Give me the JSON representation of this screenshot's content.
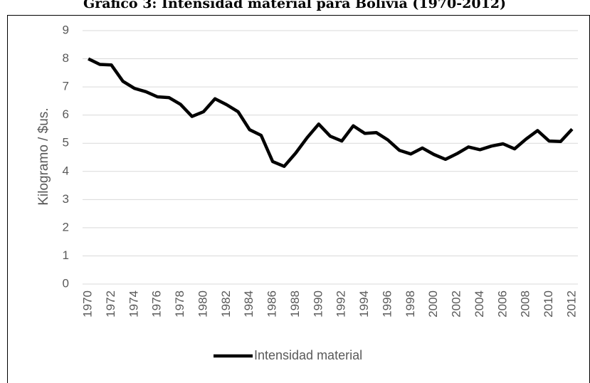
{
  "chart_data": {
    "type": "line",
    "title": "Gráfico 3: Intensidad material para Bolivia (1970-2012)",
    "y_label": "Kilogramo / $us.",
    "categories": [
      "1970",
      null,
      "1972",
      null,
      "1974",
      null,
      "1976",
      null,
      "1978",
      null,
      "1980",
      null,
      "1982",
      null,
      "1984",
      null,
      "1986",
      null,
      "1988",
      null,
      "1990",
      null,
      "1992",
      null,
      "1994",
      null,
      "1996",
      null,
      "1998",
      null,
      "2000",
      null,
      "2002",
      null,
      "2004",
      null,
      "2006",
      null,
      "2008",
      null,
      "2010",
      null,
      "2012"
    ],
    "series": [
      {
        "name": "Intensidad material",
        "color": "#000000",
        "values": [
          8.0,
          7.8,
          7.78,
          7.2,
          6.95,
          6.83,
          6.65,
          6.62,
          6.38,
          5.95,
          6.12,
          6.58,
          6.37,
          6.12,
          5.48,
          5.28,
          4.35,
          4.18,
          4.65,
          5.2,
          5.68,
          5.25,
          5.08,
          5.62,
          5.35,
          5.38,
          5.12,
          4.75,
          4.62,
          4.83,
          4.6,
          4.43,
          4.63,
          4.87,
          4.77,
          4.9,
          4.98,
          4.8,
          5.15,
          5.45,
          5.08,
          5.06,
          5.5
        ]
      }
    ],
    "ylim": [
      0,
      9
    ],
    "yticks": [
      0,
      1,
      2,
      3,
      4,
      5,
      6,
      7,
      8,
      9
    ],
    "grid": true,
    "legend": "bottom"
  }
}
